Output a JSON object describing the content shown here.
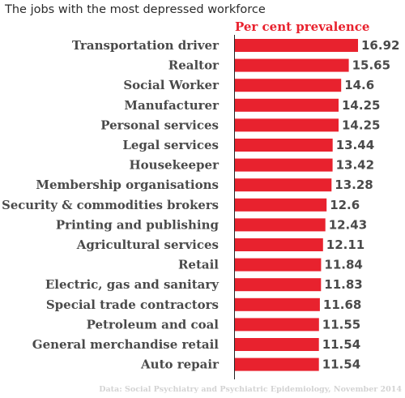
{
  "title": "The jobs with the most depressed workforce",
  "chart_data": {
    "type": "bar",
    "orientation": "horizontal",
    "unit_label": "Per cent prevalence",
    "categories": [
      "Transportation driver",
      "Realtor",
      "Social Worker",
      "Manufacturer",
      "Personal services",
      "Legal services",
      "Housekeeper",
      "Membership organisations",
      "Security & commodities brokers",
      "Printing and publishing",
      "Agricultural services",
      "Retail",
      "Electric, gas and sanitary",
      "Special trade contractors",
      "Petroleum and coal",
      "General merchandise retail",
      "Auto repair"
    ],
    "values": [
      16.92,
      15.65,
      14.6,
      14.25,
      14.25,
      13.44,
      13.42,
      13.28,
      12.6,
      12.43,
      12.11,
      11.84,
      11.83,
      11.68,
      11.55,
      11.54,
      11.54
    ],
    "value_labels": [
      "16.92",
      "15.65",
      "14.6",
      "14.25",
      "14.25",
      "13.44",
      "13.42",
      "13.28",
      "12.6",
      "12.43",
      "12.11",
      "11.84",
      "11.83",
      "11.68",
      "11.55",
      "11.54",
      "11.54"
    ],
    "xlim": [
      0,
      16.92
    ],
    "bar_color": "#e8222e",
    "grid": false,
    "source": "Data: Social Psychiatry and Psychiatric Epidemiology, November 2014"
  }
}
